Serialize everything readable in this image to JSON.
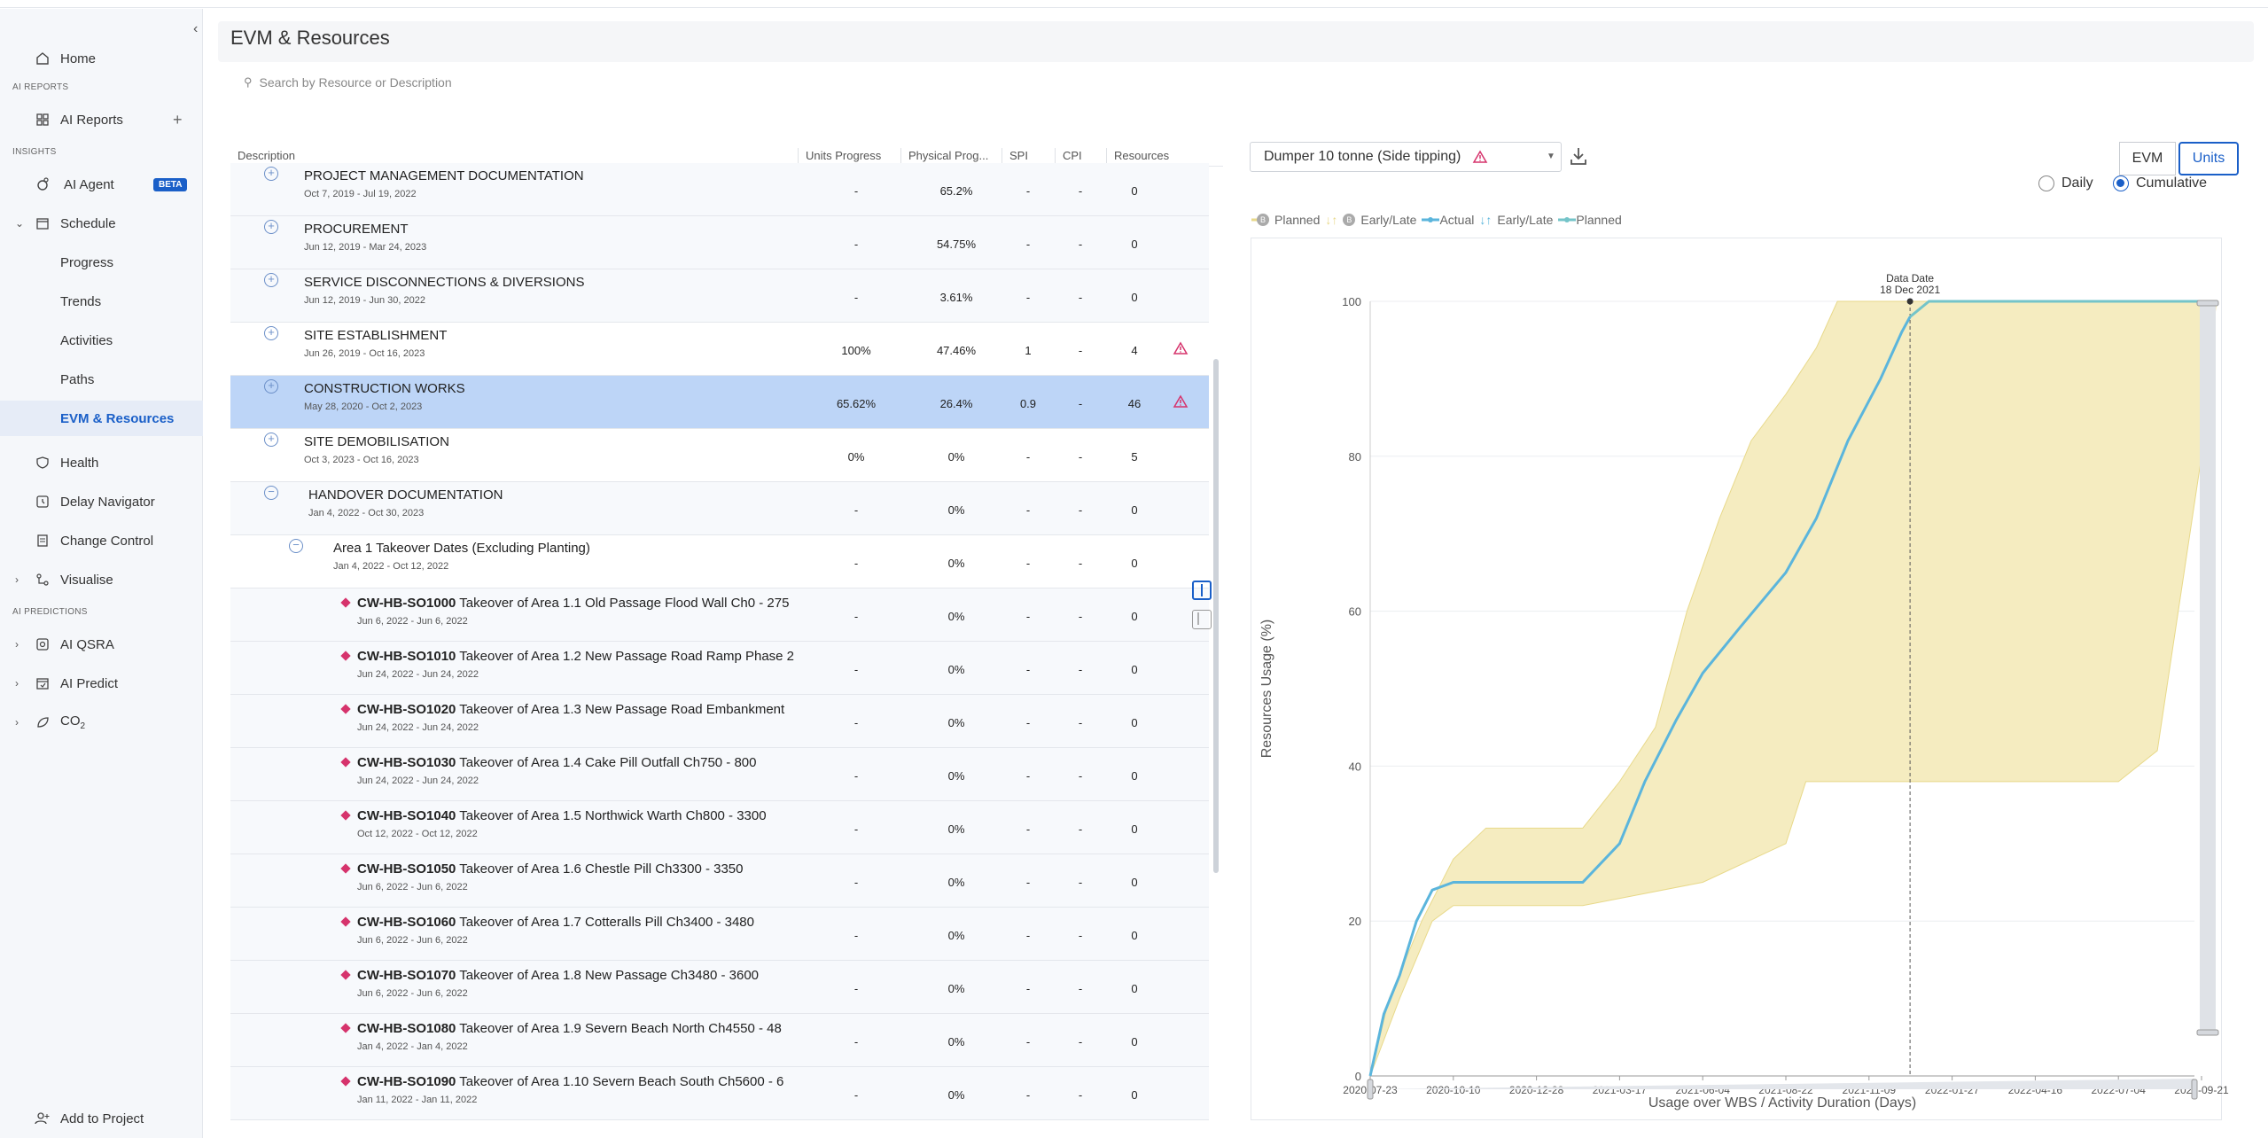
{
  "sidebar": {
    "home": "Home",
    "section_ai_reports": "AI REPORTS",
    "ai_reports": "AI Reports",
    "section_insights": "INSIGHTS",
    "ai_agent": "AI Agent",
    "beta": "BETA",
    "schedule": "Schedule",
    "progress": "Progress",
    "trends": "Trends",
    "activities": "Activities",
    "paths": "Paths",
    "evm": "EVM & Resources",
    "health": "Health",
    "delay_navigator": "Delay Navigator",
    "change_control": "Change Control",
    "visualise": "Visualise",
    "section_ai_predictions": "AI PREDICTIONS",
    "ai_qsra": "AI QSRA",
    "ai_predict": "AI Predict",
    "co2": "CO",
    "co2_sub": "2",
    "add_to_project": "Add to Project"
  },
  "page": {
    "title": "EVM & Resources",
    "search_placeholder": "Search by Resource or Description"
  },
  "table": {
    "headers": [
      "Description",
      "Units Progress",
      "Physical Prog...",
      "SPI",
      "CPI",
      "Resources"
    ],
    "rows": [
      {
        "name": "PROJECT MANAGEMENT DOCUMENTATION",
        "dates": "Oct 7, 2019 - Jul 19, 2022",
        "units": "-",
        "physical": "65.2%",
        "spi": "-",
        "cpi": "-",
        "res": "0"
      },
      {
        "name": "PROCUREMENT",
        "dates": "Jun 12, 2019 - Mar 24, 2023",
        "units": "-",
        "physical": "54.75%",
        "spi": "-",
        "cpi": "-",
        "res": "0"
      },
      {
        "name": "SERVICE DISCONNECTIONS & DIVERSIONS",
        "dates": "Jun 12, 2019 - Jun 30, 2022",
        "units": "-",
        "physical": "3.61%",
        "spi": "-",
        "cpi": "-",
        "res": "0"
      },
      {
        "name": "SITE ESTABLISHMENT",
        "dates": "Jun 26, 2019 - Oct 16, 2023",
        "units": "100%",
        "physical": "47.46%",
        "spi": "1",
        "cpi": "-",
        "res": "4"
      },
      {
        "name": "CONSTRUCTION WORKS",
        "dates": "May 28, 2020 - Oct 2, 2023",
        "units": "65.62%",
        "physical": "26.4%",
        "spi": "0.9",
        "cpi": "-",
        "res": "46"
      },
      {
        "name": "SITE DEMOBILISATION",
        "dates": "Oct 3, 2023 - Oct 16, 2023",
        "units": "0%",
        "physical": "0%",
        "spi": "-",
        "cpi": "-",
        "res": "5"
      },
      {
        "name": "HANDOVER DOCUMENTATION",
        "dates": "Jan 4, 2022 - Oct 30, 2023",
        "units": "-",
        "physical": "0%",
        "spi": "-",
        "cpi": "-",
        "res": "0"
      },
      {
        "name": "Area 1 Takeover Dates (Excluding Planting)",
        "dates": "Jan 4, 2022 - Oct 12, 2022",
        "units": "-",
        "physical": "0%",
        "spi": "-",
        "cpi": "-",
        "res": "0"
      },
      {
        "code": "CW-HB-SO1000",
        "name": "Takeover of Area 1.1 Old Passage Flood Wall Ch0 - 275",
        "dates": "Jun 6, 2022 - Jun 6, 2022",
        "units": "-",
        "physical": "0%",
        "spi": "-",
        "cpi": "-",
        "res": "0"
      },
      {
        "code": "CW-HB-SO1010",
        "name": "Takeover of Area 1.2 New Passage Road Ramp Phase 2",
        "dates": "Jun 24, 2022 - Jun 24, 2022",
        "units": "-",
        "physical": "0%",
        "spi": "-",
        "cpi": "-",
        "res": "0"
      },
      {
        "code": "CW-HB-SO1020",
        "name": "Takeover of Area 1.3 New Passage Road Embankment",
        "dates": "Jun 24, 2022 - Jun 24, 2022",
        "units": "-",
        "physical": "0%",
        "spi": "-",
        "cpi": "-",
        "res": "0"
      },
      {
        "code": "CW-HB-SO1030",
        "name": "Takeover of Area 1.4 Cake Pill Outfall Ch750 - 800",
        "dates": "Jun 24, 2022 - Jun 24, 2022",
        "units": "-",
        "physical": "0%",
        "spi": "-",
        "cpi": "-",
        "res": "0"
      },
      {
        "code": "CW-HB-SO1040",
        "name": "Takeover of Area 1.5 Northwick Warth Ch800 - 3300",
        "dates": "Oct 12, 2022 - Oct 12, 2022",
        "units": "-",
        "physical": "0%",
        "spi": "-",
        "cpi": "-",
        "res": "0"
      },
      {
        "code": "CW-HB-SO1050",
        "name": "Takeover of Area 1.6 Chestle Pill Ch3300 - 3350",
        "dates": "Jun 6, 2022 - Jun 6, 2022",
        "units": "-",
        "physical": "0%",
        "spi": "-",
        "cpi": "-",
        "res": "0"
      },
      {
        "code": "CW-HB-SO1060",
        "name": "Takeover of Area 1.7 Cotteralls Pill Ch3400 - 3480",
        "dates": "Jun 6, 2022 - Jun 6, 2022",
        "units": "-",
        "physical": "0%",
        "spi": "-",
        "cpi": "-",
        "res": "0"
      },
      {
        "code": "CW-HB-SO1070",
        "name": "Takeover of Area 1.8 New Passage Ch3480 - 3600",
        "dates": "Jun 6, 2022 - Jun 6, 2022",
        "units": "-",
        "physical": "0%",
        "spi": "-",
        "cpi": "-",
        "res": "0"
      },
      {
        "code": "CW-HB-SO1080",
        "name": "Takeover of Area 1.9 Severn Beach North Ch4550 - 48",
        "dates": "Jan 4, 2022 - Jan 4, 2022",
        "units": "-",
        "physical": "0%",
        "spi": "-",
        "cpi": "-",
        "res": "0"
      },
      {
        "code": "CW-HB-SO1090",
        "name": "Takeover of Area 1.10 Severn Beach South Ch5600 - 6",
        "dates": "Jan 11, 2022 - Jan 11, 2022",
        "units": "-",
        "physical": "0%",
        "spi": "-",
        "cpi": "-",
        "res": "0"
      }
    ]
  },
  "evm": {
    "resource": "Dumper 10 tonne (Side tipping)",
    "evm_btn": "EVM",
    "units_btn": "Units",
    "daily": "Daily",
    "cumulative": "Cumulative",
    "legend": [
      "B",
      "Planned",
      "B",
      "Early/Late",
      "Actual",
      "Early/Late",
      "Planned"
    ]
  },
  "chart_data": {
    "type": "line",
    "title": "",
    "xlabel": "Usage over WBS / Activity Duration (Days)",
    "ylabel": "Resources Usage (%)",
    "ylim": [
      0,
      100
    ],
    "y_ticks": [
      "0",
      "20",
      "40",
      "60",
      "80",
      "100"
    ],
    "x_ticks": [
      "2020-07-23",
      "2020-10-10",
      "2020-12-28",
      "2021-03-17",
      "2021-06-04",
      "2021-08-22",
      "2021-11-09",
      "2022-01-27",
      "2022-04-16",
      "2022-07-04",
      "2022-09-21"
    ],
    "data_date_label": "Data Date",
    "data_date": "18 Dec 2021",
    "colors": {
      "band": "#f5ecc0",
      "band_line": "#e8d98a",
      "actual": "#5bb5dc",
      "planned": "#74c4c9"
    },
    "series": [
      {
        "name": "Actual",
        "x": [
          "2020-07-23",
          "2020-08-05",
          "2020-08-20",
          "2020-09-05",
          "2020-09-20",
          "2020-10-10",
          "2020-12-28",
          "2021-02-10",
          "2021-03-17",
          "2021-04-10",
          "2021-05-10",
          "2021-06-04",
          "2021-07-10",
          "2021-08-22",
          "2021-09-20",
          "2021-10-20",
          "2021-11-20",
          "2021-12-10",
          "2021-12-18"
        ],
        "y": [
          0,
          8,
          13,
          20,
          24,
          25,
          25,
          25,
          30,
          38,
          46,
          52,
          58,
          65,
          72,
          82,
          90,
          96,
          98
        ]
      },
      {
        "name": "Planned",
        "x": [
          "2021-12-18",
          "2022-01-05",
          "2022-01-20",
          "2022-10-05"
        ],
        "y": [
          98,
          100,
          100,
          100
        ]
      },
      {
        "name": "Early",
        "x": [
          "2020-07-23",
          "2020-08-10",
          "2020-09-10",
          "2020-10-10",
          "2020-11-10",
          "2020-12-28",
          "2021-02-10",
          "2021-03-17",
          "2021-04-20",
          "2021-05-20",
          "2021-06-20",
          "2021-07-20",
          "2021-08-22",
          "2021-09-20",
          "2021-10-10",
          "2021-11-09"
        ],
        "y": [
          0,
          10,
          20,
          28,
          32,
          32,
          32,
          38,
          45,
          60,
          72,
          82,
          88,
          94,
          100,
          100
        ]
      },
      {
        "name": "Late",
        "x": [
          "2020-07-23",
          "2020-08-20",
          "2020-09-20",
          "2020-10-10",
          "2021-02-10",
          "2021-06-04",
          "2021-08-22",
          "2021-09-10",
          "2021-11-09",
          "2022-07-04",
          "2022-08-10",
          "2022-09-21",
          "2022-10-05"
        ],
        "y": [
          0,
          10,
          20,
          22,
          22,
          25,
          30,
          38,
          38,
          38,
          42,
          80,
          100
        ]
      }
    ]
  }
}
